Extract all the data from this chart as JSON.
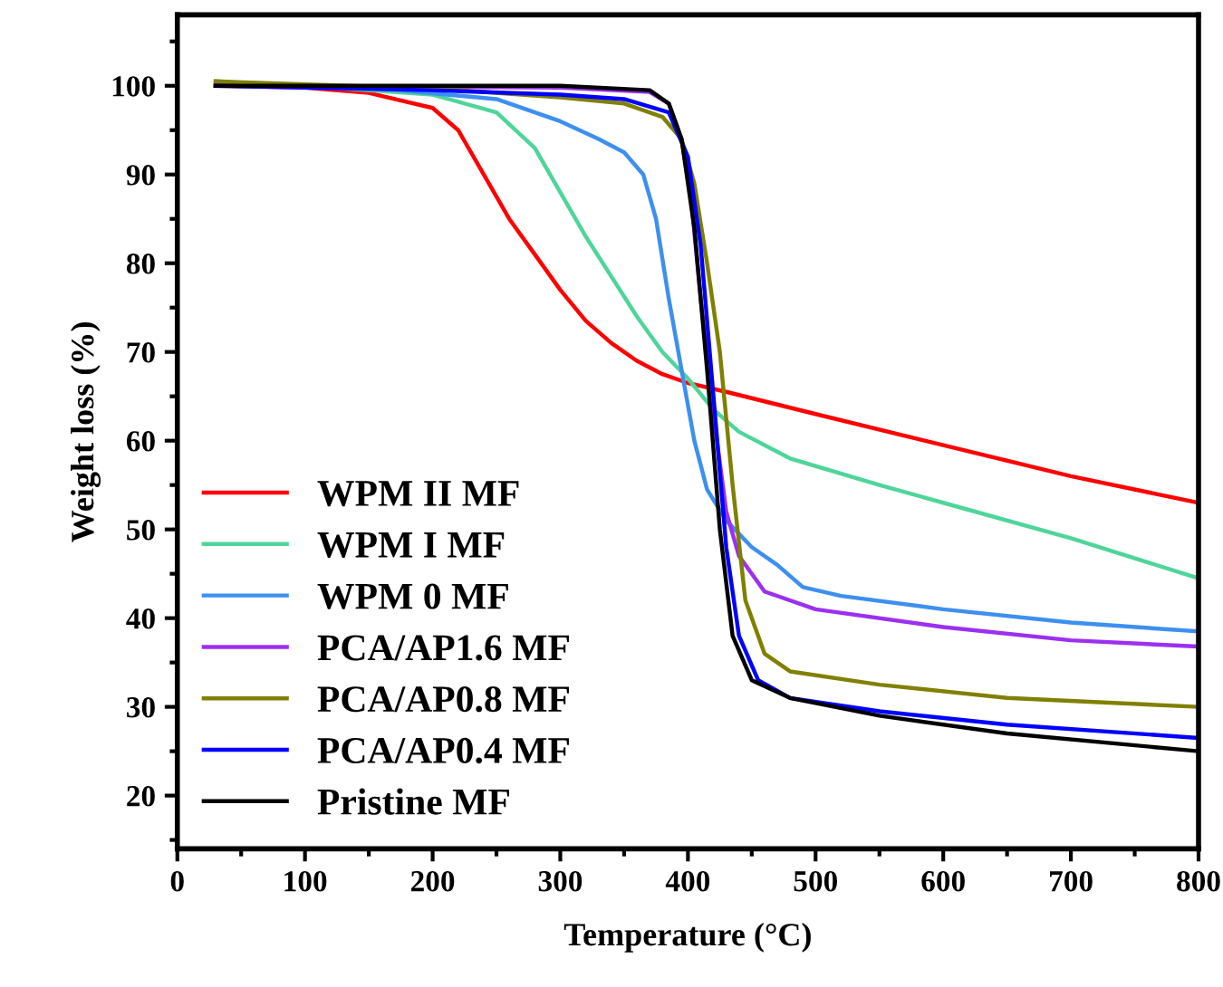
{
  "chart_data": {
    "type": "line",
    "xlabel": "Temperature (°C)",
    "ylabel": "Weight loss (%)",
    "xlim": [
      0,
      800
    ],
    "xticks": [
      0,
      100,
      200,
      300,
      400,
      500,
      600,
      700,
      800
    ],
    "ylim": [
      14,
      108
    ],
    "yticks": [
      20,
      30,
      40,
      50,
      60,
      70,
      80,
      90,
      100
    ],
    "grid": false,
    "legend": "bottom left",
    "marker": "none",
    "line_style": "solid",
    "series": [
      {
        "name": "WPM II MF",
        "color": "#ff0000",
        "x": [
          30,
          100,
          150,
          200,
          220,
          240,
          260,
          280,
          300,
          320,
          340,
          360,
          380,
          400,
          430,
          500,
          600,
          700,
          800
        ],
        "values": [
          100,
          99.8,
          99.2,
          97.5,
          95,
          90,
          85,
          81,
          77,
          73.5,
          71,
          69,
          67.5,
          66.5,
          65.5,
          63,
          59.5,
          56,
          53
        ]
      },
      {
        "name": "WPM I MF",
        "color": "#4fd59a",
        "x": [
          30,
          100,
          200,
          250,
          280,
          300,
          320,
          340,
          360,
          380,
          400,
          420,
          440,
          480,
          550,
          600,
          700,
          800
        ],
        "values": [
          100.5,
          100,
          99,
          97,
          93,
          88,
          83,
          78.5,
          74,
          70,
          67,
          63.5,
          61,
          58,
          55,
          53,
          49,
          44.5
        ]
      },
      {
        "name": "WPM 0 MF",
        "color": "#3d8ff0",
        "x": [
          30,
          150,
          250,
          300,
          330,
          350,
          365,
          375,
          385,
          395,
          405,
          415,
          430,
          450,
          470,
          490,
          520,
          600,
          700,
          800
        ],
        "values": [
          100,
          99.8,
          98.5,
          96,
          94,
          92.5,
          90,
          85,
          76,
          68,
          60,
          54.5,
          51,
          48,
          46,
          43.5,
          42.5,
          41,
          39.5,
          38.5
        ]
      },
      {
        "name": "PCA/AP1.6 MF",
        "color": "#9b30f0",
        "x": [
          30,
          300,
          370,
          385,
          395,
          402,
          410,
          420,
          430,
          440,
          460,
          500,
          600,
          700,
          800
        ],
        "values": [
          100,
          99.8,
          99.3,
          98,
          94,
          88,
          76,
          63,
          52,
          47,
          43,
          41,
          39,
          37.5,
          36.8
        ]
      },
      {
        "name": "PCA/AP0.8 MF",
        "color": "#808000",
        "x": [
          30,
          200,
          300,
          350,
          380,
          395,
          405,
          415,
          425,
          435,
          445,
          460,
          480,
          550,
          650,
          800
        ],
        "values": [
          100.5,
          99.7,
          98.7,
          98,
          96.5,
          94,
          89,
          80,
          70,
          55,
          42,
          36,
          34,
          32.5,
          31,
          30
        ]
      },
      {
        "name": "PCA/AP0.4 MF",
        "color": "#0000ff",
        "x": [
          30,
          200,
          300,
          350,
          385,
          400,
          410,
          420,
          430,
          440,
          455,
          480,
          550,
          650,
          800
        ],
        "values": [
          100,
          99.5,
          99,
          98.5,
          97,
          92,
          82,
          65,
          48,
          38,
          33,
          31,
          29.5,
          28,
          26.5
        ]
      },
      {
        "name": "Pristine MF",
        "color": "#000000",
        "x": [
          30,
          300,
          370,
          385,
          395,
          405,
          415,
          425,
          435,
          450,
          480,
          550,
          650,
          800
        ],
        "values": [
          100,
          100,
          99.5,
          98,
          94,
          84,
          68,
          50,
          38,
          33,
          31,
          29,
          27,
          25
        ]
      }
    ]
  }
}
